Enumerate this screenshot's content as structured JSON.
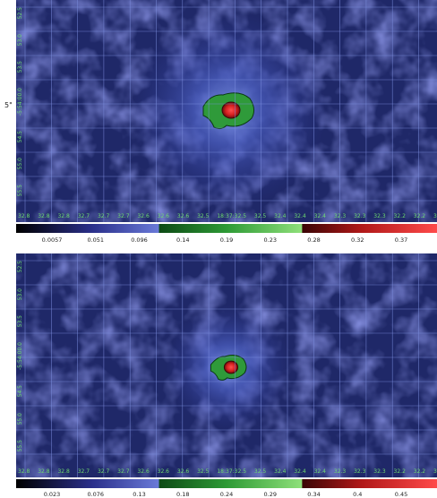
{
  "side_label": "5\"",
  "panels": [
    {
      "x_labels": [
        "32.8",
        "32.8",
        "32.8",
        "32.7",
        "32.7",
        "32.7",
        "32.6",
        "32.6",
        "32.6",
        "32.5",
        "18:37:32.5",
        "32.5",
        "32.4",
        "32.4",
        "32.4",
        "32.3",
        "32.3",
        "32.3",
        "32.2",
        "32.2",
        "3"
      ],
      "y_labels": [
        "52.5",
        "53.0",
        "53.5",
        "-5:54:00.0",
        "54.5",
        "55.0",
        "55.5"
      ],
      "colorbar_labels": [
        "0.0057",
        "0.051",
        "0.096",
        "0.14",
        "0.19",
        "0.23",
        "0.28",
        "0.32",
        "0.37"
      ]
    },
    {
      "x_labels": [
        "32.8",
        "32.8",
        "32.8",
        "32.7",
        "32.7",
        "32.7",
        "32.6",
        "32.6",
        "32.6",
        "32.5",
        "18:37:32.5",
        "32.5",
        "32.4",
        "32.4",
        "32.4",
        "32.3",
        "32.3",
        "32.3",
        "32.2",
        "32.2",
        "3"
      ],
      "y_labels": [
        "52.5",
        "53.0",
        "53.5",
        "-5:54:00.0",
        "54.5",
        "55.0",
        "55.5"
      ],
      "colorbar_labels": [
        "0.023",
        "0.076",
        "0.13",
        "0.18",
        "0.24",
        "0.29",
        "0.34",
        "0.4",
        "0.45"
      ]
    }
  ]
}
